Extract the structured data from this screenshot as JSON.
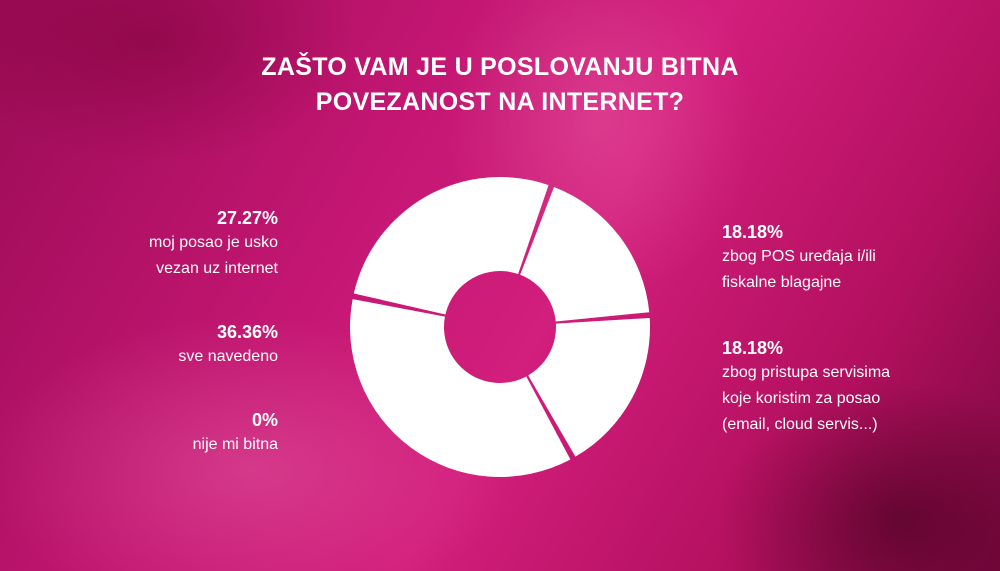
{
  "title": {
    "line1": "ZAŠTO VAM JE U POSLOVANJU BITNA",
    "line2": "POVEZANOST NA INTERNET?"
  },
  "colors": {
    "background": "#c31672",
    "slices": "#ffffff"
  },
  "chart_data": {
    "type": "pie",
    "donut": true,
    "title": "ZAŠTO VAM JE U POSLOVANJU BITNA POVEZANOST NA INTERNET?",
    "slices": [
      {
        "label": "moj posao je usko vezan uz internet",
        "value": 27.27,
        "value_label": "27.27%",
        "lines": [
          "moj posao je usko",
          "vezan uz internet"
        ]
      },
      {
        "label": "zbog POS uređaja i/ili fiskalne blagajne",
        "value": 18.18,
        "value_label": "18.18%",
        "lines": [
          "zbog POS uređaja i/ili",
          "fiskalne blagajne"
        ]
      },
      {
        "label": "zbog pristupa servisima koje koristim za posao (email, cloud servis...)",
        "value": 18.18,
        "value_label": "18.18%",
        "lines": [
          "zbog pristupa servisima",
          "koje koristim za posao",
          "(email, cloud servis...)"
        ]
      },
      {
        "label": "sve navedeno",
        "value": 36.36,
        "value_label": "36.36%",
        "lines": [
          "sve navedeno"
        ]
      },
      {
        "label": "nije mi bitna",
        "value": 0,
        "value_label": "0%",
        "lines": [
          "nije mi bitna"
        ]
      }
    ]
  }
}
